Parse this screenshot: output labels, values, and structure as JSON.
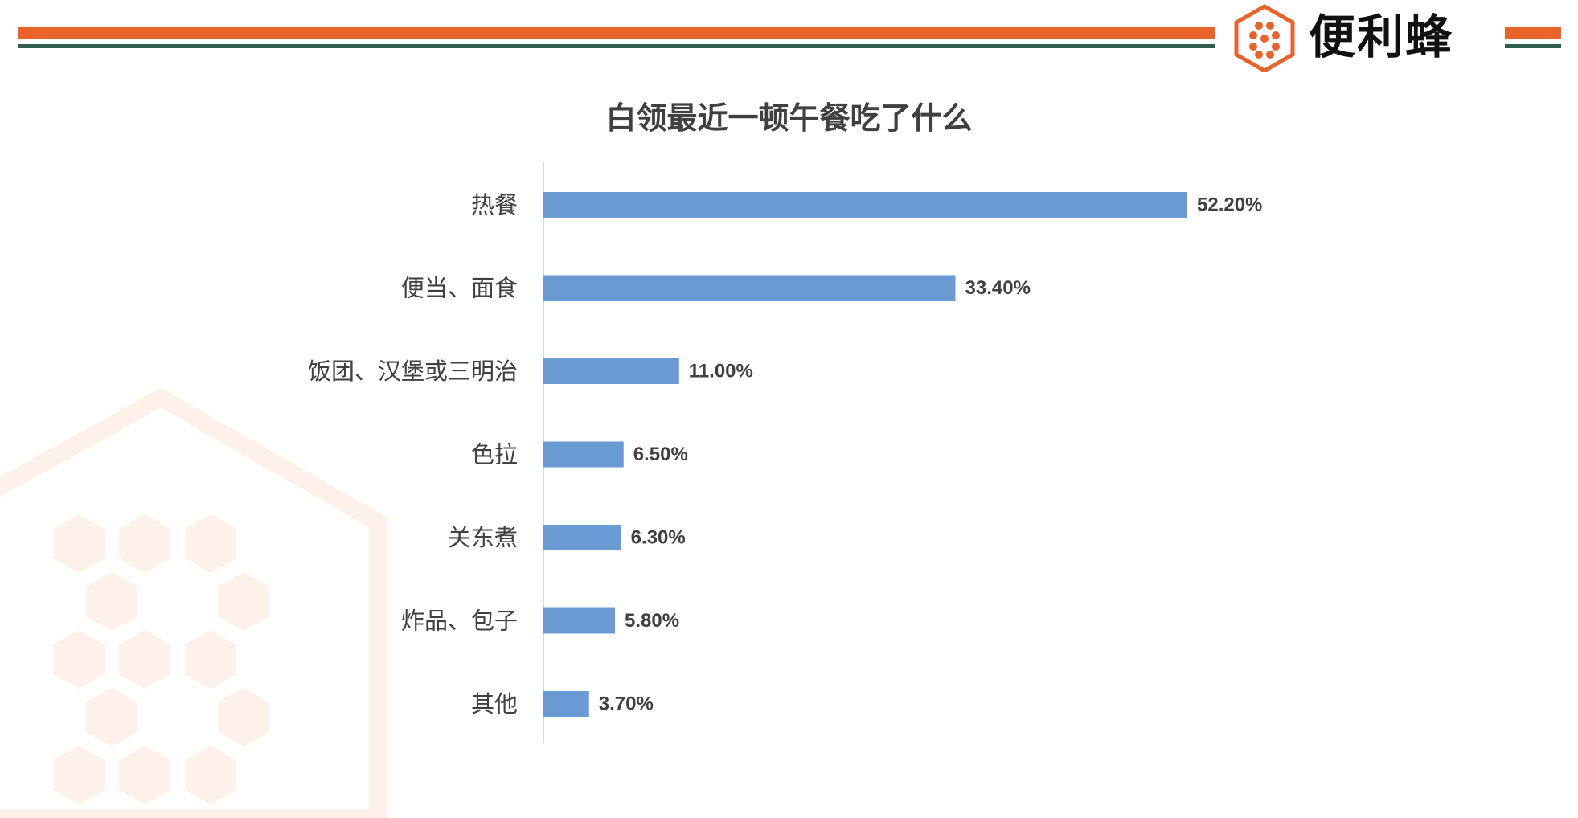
{
  "brand": {
    "name": "便利蜂",
    "accent_color": "#e9632b",
    "secondary_color": "#2e5f4f",
    "logo_icon": "hexagon-honeycomb-icon"
  },
  "chart_data": {
    "type": "bar",
    "orientation": "horizontal",
    "title": "白领最近一顿午餐吃了什么",
    "categories": [
      "热餐",
      "便当、面食",
      "饭团、汉堡或三明治",
      "色拉",
      "关东煮",
      "炸品、包子",
      "其他"
    ],
    "values": [
      52.2,
      33.4,
      11.0,
      6.5,
      6.3,
      5.8,
      3.7
    ],
    "data_labels": [
      "52.20%",
      "33.40%",
      "11.00%",
      "6.50%",
      "6.30%",
      "5.80%",
      "3.70%"
    ],
    "unit": "%",
    "xlim": [
      0,
      60
    ],
    "bar_color": "#6a9bd5",
    "grid": false,
    "legend": "none"
  }
}
